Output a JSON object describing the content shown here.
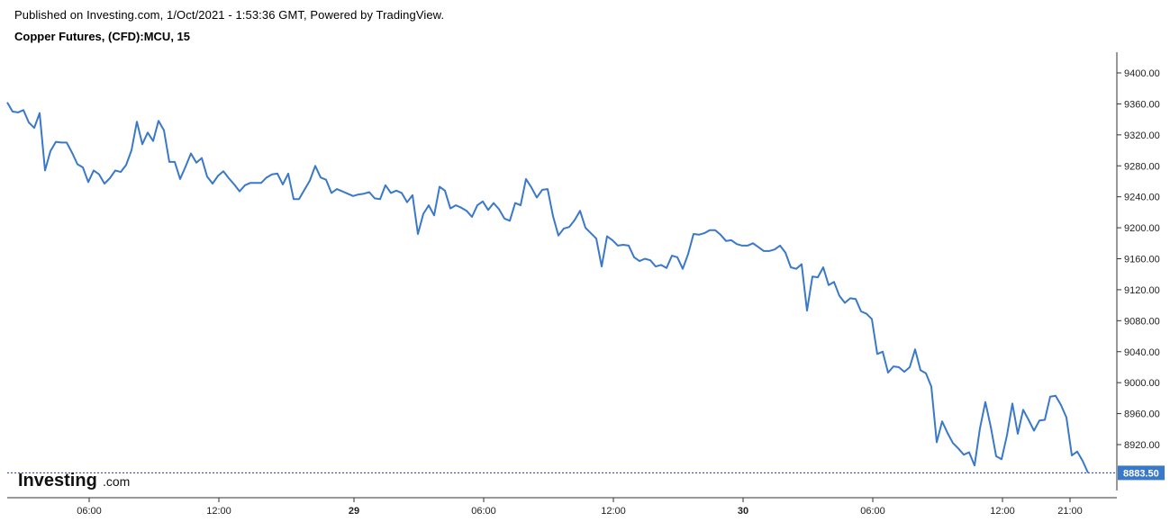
{
  "header": {
    "published": "Published on Investing.com, 1/Oct/2021 - 1:53:36 GMT, Powered by TradingView.",
    "symbol": "Copper Futures, (CFD):MCU, 15"
  },
  "logo": {
    "main": "Investing",
    "suffix": ".com"
  },
  "colors": {
    "line": "#3a78c9",
    "axis": "#333333",
    "price_label_bg": "#3a78c9",
    "last_line": "#1f3f8a"
  },
  "chart_data": {
    "type": "line",
    "title": "Copper Futures, (CFD):MCU, 15",
    "xlabel": "",
    "ylabel": "",
    "ylim": [
      8850,
      9430
    ],
    "y_ticks": [
      8920,
      8960,
      9000,
      9040,
      9080,
      9120,
      9160,
      9200,
      9240,
      9280,
      9320,
      9360,
      9400
    ],
    "y_tick_labels": [
      "8920.00",
      "8960.00",
      "9000.00",
      "9040.00",
      "9080.00",
      "9120.00",
      "9160.00",
      "9200.00",
      "9240.00",
      "9280.00",
      "9320.00",
      "9360.00",
      "9400.00"
    ],
    "x_ticks": [
      {
        "label": "06:00",
        "bold": false
      },
      {
        "label": "12:00",
        "bold": false
      },
      {
        "label": "29",
        "bold": true
      },
      {
        "label": "06:00",
        "bold": false
      },
      {
        "label": "12:00",
        "bold": false
      },
      {
        "label": "30",
        "bold": true
      },
      {
        "label": "06:00",
        "bold": false
      },
      {
        "label": "12:00",
        "bold": false
      },
      {
        "label": "21:00",
        "bold": false
      }
    ],
    "last_price": 8883.5,
    "last_price_label": "8883.50",
    "grid": false,
    "series": [
      {
        "values": [
          9362,
          9350,
          9349,
          9352,
          9336,
          9329,
          9348,
          9274,
          9299,
          9311,
          9310,
          9310,
          9297,
          9282,
          9278,
          9259,
          9274,
          9269,
          9257,
          9264,
          9274,
          9272,
          9281,
          9300,
          9337,
          9308,
          9323,
          9312,
          9338,
          9326,
          9285,
          9285,
          9263,
          9279,
          9296,
          9284,
          9290,
          9266,
          9257,
          9267,
          9273,
          9264,
          9256,
          9247,
          9255,
          9258,
          9258,
          9258,
          9265,
          9269,
          9270,
          9256,
          9270,
          9237,
          9237,
          9249,
          9261,
          9280,
          9265,
          9262,
          9245,
          9250,
          9247,
          9244,
          9241,
          9243,
          9244,
          9246,
          9238,
          9237,
          9255,
          9245,
          9248,
          9245,
          9233,
          9242,
          9192,
          9218,
          9229,
          9216,
          9253,
          9248,
          9225,
          9229,
          9226,
          9222,
          9214,
          9229,
          9234,
          9223,
          9232,
          9224,
          9212,
          9209,
          9232,
          9229,
          9263,
          9252,
          9239,
          9249,
          9250,
          9215,
          9190,
          9199,
          9201,
          9210,
          9222,
          9200,
          9193,
          9186,
          9150,
          9189,
          9184,
          9177,
          9178,
          9177,
          9162,
          9157,
          9160,
          9158,
          9150,
          9152,
          9148,
          9164,
          9162,
          9147,
          9166,
          9192,
          9191,
          9193,
          9197,
          9197,
          9191,
          9183,
          9184,
          9179,
          9177,
          9177,
          9180,
          9175,
          9170,
          9170,
          9172,
          9177,
          9168,
          9149,
          9147,
          9153,
          9093,
          9137,
          9136,
          9149,
          9126,
          9130,
          9112,
          9103,
          9109,
          9108,
          9092,
          9089,
          9082,
          9037,
          9040,
          9013,
          9021,
          9020,
          9014,
          9020,
          9043,
          9016,
          9012,
          8995,
          8923,
          8950,
          8935,
          8922,
          8915,
          8907,
          8910,
          8893,
          8941,
          8975,
          8943,
          8905,
          8901,
          8932,
          8973,
          8934,
          8965,
          8952,
          8938,
          8951,
          8952,
          8982,
          8983,
          8971,
          8955,
          8906,
          8911,
          8899,
          8883.5
        ]
      }
    ]
  }
}
